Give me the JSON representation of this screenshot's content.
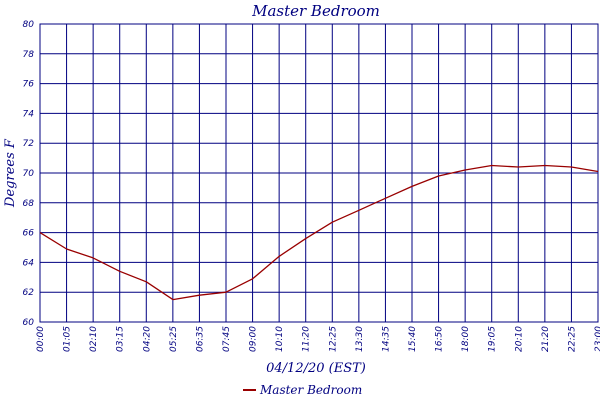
{
  "chart_data": {
    "type": "line",
    "title": "Master Bedroom",
    "xlabel": "04/12/20 (EST)",
    "ylabel": "Degrees F",
    "ylim": [
      60,
      80
    ],
    "yticks": [
      "60",
      "62",
      "64",
      "66",
      "68",
      "70",
      "72",
      "74",
      "76",
      "78",
      "80"
    ],
    "xticks": [
      "00:00",
      "01:05",
      "02:10",
      "03:15",
      "04:20",
      "05:25",
      "06:35",
      "07:45",
      "09:00",
      "10:10",
      "11:20",
      "12:25",
      "13:30",
      "14:35",
      "15:40",
      "16:50",
      "18:00",
      "19:05",
      "20:10",
      "21:20",
      "22:25",
      "23:00"
    ],
    "grid": true,
    "legend_position": "bottom-center",
    "colors": {
      "line": "#990000",
      "grid": "#000080",
      "text": "#000080",
      "background": "#ffffff"
    },
    "series": [
      {
        "name": "Master Bedroom",
        "x": [
          0,
          1,
          2,
          3,
          4,
          5,
          6,
          7,
          8,
          9,
          10,
          11,
          12,
          13,
          14,
          15,
          16,
          17,
          18,
          19,
          20,
          21
        ],
        "y": [
          66.0,
          64.9,
          64.3,
          63.4,
          62.7,
          61.5,
          61.8,
          62.0,
          62.9,
          64.4,
          65.6,
          66.7,
          67.5,
          68.3,
          69.1,
          69.8,
          70.2,
          70.5,
          70.4,
          70.5,
          70.4,
          70.1
        ]
      }
    ]
  }
}
